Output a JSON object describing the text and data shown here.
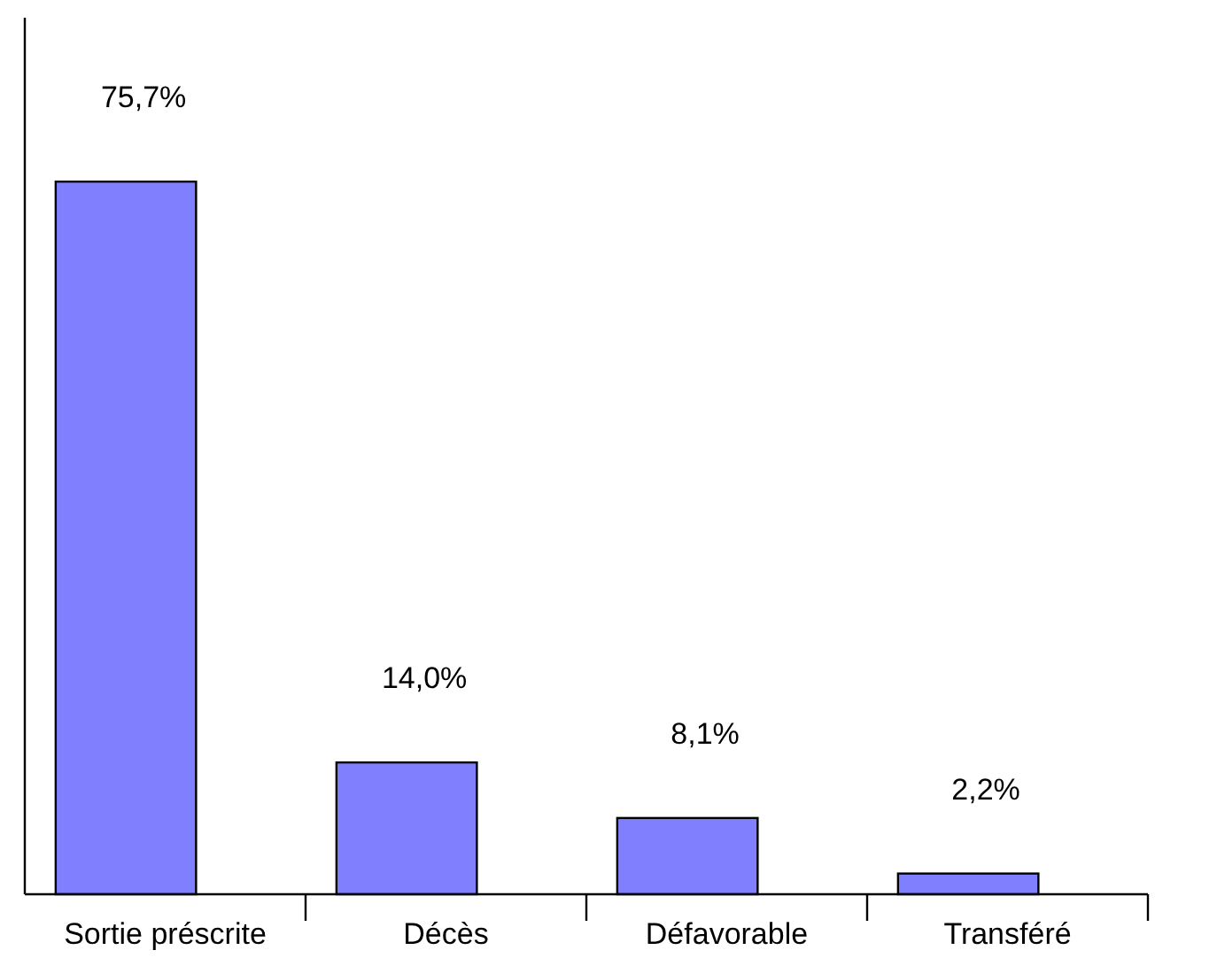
{
  "chart_data": {
    "type": "bar",
    "categories": [
      "Sortie préscrite",
      "Décès",
      "Défavorable",
      "Transféré"
    ],
    "values": [
      75.7,
      14.0,
      8.1,
      2.2
    ],
    "value_labels": [
      "75,7%",
      "14,0%",
      "8,1%",
      "2,2%"
    ],
    "color": "#8080ff"
  }
}
